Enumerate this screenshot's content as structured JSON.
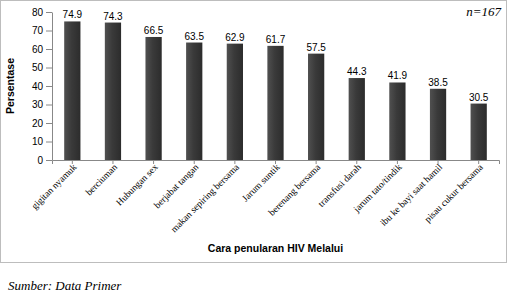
{
  "chart_data": {
    "type": "bar",
    "categories": [
      "gigitan nyamuk",
      "berciuman",
      "Hubungan sex",
      "berjabat tangan",
      "makan sepiring bersama",
      "Jarum suntik",
      "berenang bersama",
      "transfusi darah",
      "jarum tato/tindik",
      "ibu ke bayi saat hamil",
      "pisau cukur bersama"
    ],
    "values": [
      74.9,
      74.3,
      66.5,
      63.5,
      62.9,
      61.7,
      57.5,
      44.3,
      41.9,
      38.5,
      30.5
    ],
    "color": "#3a3a3a",
    "x_label": "Cara penularan HIV Melalui",
    "y_label": "Persentase",
    "ylim": [
      0,
      80
    ],
    "yticks": [
      0,
      10,
      20,
      30,
      40,
      50,
      60,
      70,
      80
    ],
    "grid": false,
    "data_labels": true,
    "annotations": [
      "n=167",
      "Sumber: Data Primer"
    ]
  }
}
